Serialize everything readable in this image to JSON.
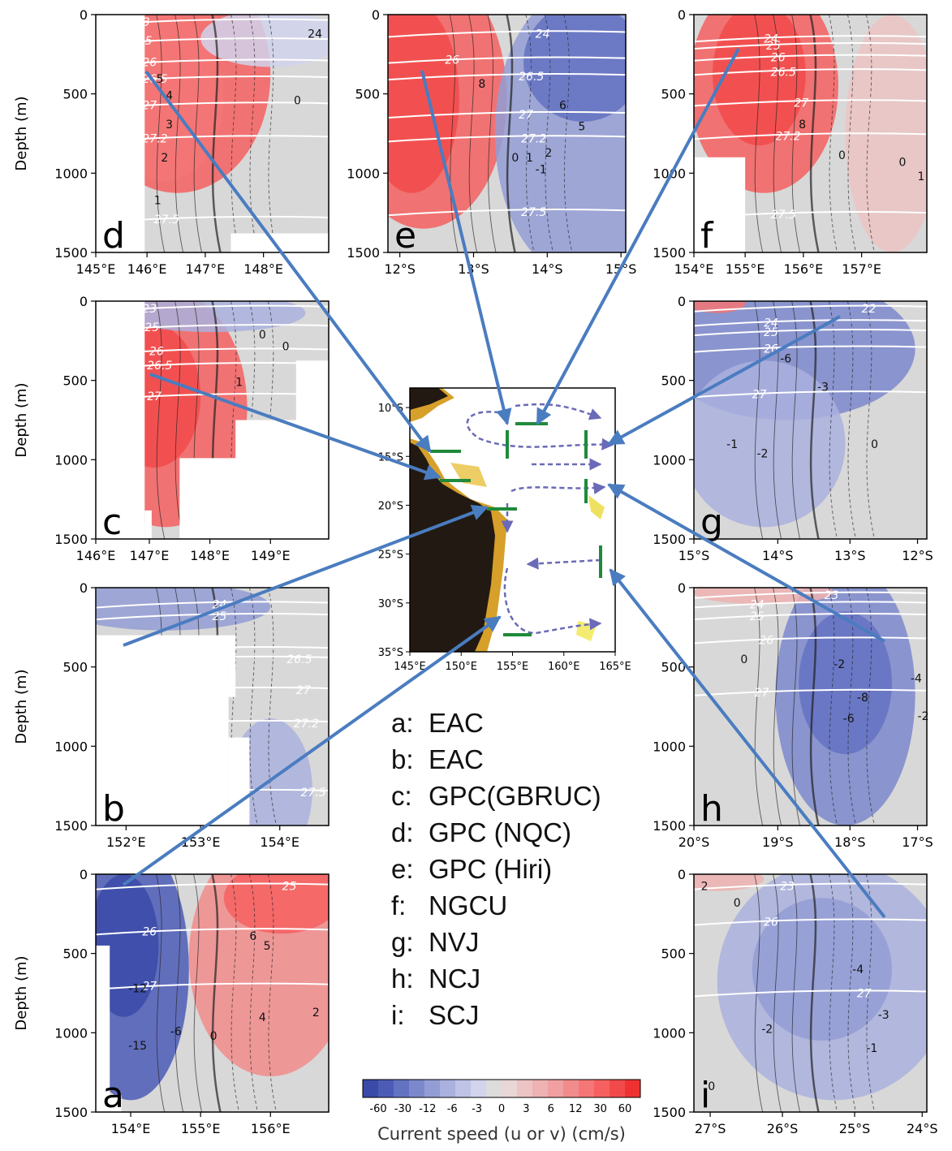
{
  "chart_data": {
    "type": "contour",
    "y_axis_label": "Depth (m)",
    "y_ticks": [
      "0",
      "500",
      "1000",
      "1500"
    ],
    "ylim": [
      0,
      1500
    ],
    "panels": [
      {
        "id": "d",
        "letter": "d",
        "x_ticks": [
          "145°E",
          "146°E",
          "147°E",
          "148°E"
        ],
        "density_labels": [
          "23",
          "25",
          "26",
          "26.5",
          "27",
          "27.2",
          "27.5"
        ],
        "speed_labels": [
          "5",
          "4",
          "3",
          "2",
          "1",
          "0",
          "24"
        ]
      },
      {
        "id": "e",
        "letter": "e",
        "x_ticks": [
          "12°S",
          "13°S",
          "14°S",
          "15°S"
        ],
        "density_labels": [
          "24",
          "26",
          "26.5",
          "27",
          "27.2",
          "27.5"
        ],
        "speed_labels": [
          "8",
          "6",
          "5",
          "2",
          "1",
          "0",
          "-1"
        ]
      },
      {
        "id": "f",
        "letter": "f",
        "x_ticks": [
          "154°E",
          "155°E",
          "156°E",
          "157°E"
        ],
        "density_labels": [
          "24",
          "25",
          "26",
          "26.5",
          "27",
          "27.2",
          "27.5"
        ],
        "speed_labels": [
          "8",
          "0",
          "0",
          "1"
        ]
      },
      {
        "id": "c",
        "letter": "c",
        "x_ticks": [
          "146°E",
          "147°E",
          "148°E",
          "149°E"
        ],
        "density_labels": [
          "23",
          "25",
          "26",
          "26.5",
          "27"
        ],
        "speed_labels": [
          "0",
          "0",
          "1"
        ]
      },
      {
        "id": "g",
        "letter": "g",
        "x_ticks": [
          "15°S",
          "14°S",
          "13°S",
          "12°S"
        ],
        "density_labels": [
          "22",
          "24",
          "25",
          "26",
          "27"
        ],
        "speed_labels": [
          "-6",
          "-3",
          "-2",
          "-1",
          "0"
        ]
      },
      {
        "id": "b",
        "letter": "b",
        "x_ticks": [
          "152°E",
          "153°E",
          "154°E"
        ],
        "density_labels": [
          "24",
          "25",
          "26",
          "26.5",
          "27",
          "27.2",
          "27.5"
        ],
        "speed_labels": []
      },
      {
        "id": "h",
        "letter": "h",
        "x_ticks": [
          "20°S",
          "19°S",
          "18°S",
          "17°S"
        ],
        "density_labels": [
          "23",
          "24",
          "25",
          "26",
          "27"
        ],
        "speed_labels": [
          "0",
          "-2",
          "-4",
          "-8",
          "-6",
          "-2"
        ]
      },
      {
        "id": "a",
        "letter": "a",
        "x_ticks": [
          "154°E",
          "155°E",
          "156°E"
        ],
        "density_labels": [
          "25",
          "26",
          "27"
        ],
        "speed_labels": [
          "-15",
          "-12",
          "-6",
          "0",
          "6",
          "5",
          "4",
          "2"
        ]
      },
      {
        "id": "i",
        "letter": "i",
        "x_ticks": [
          "27°S",
          "26°S",
          "25°S",
          "24°S"
        ],
        "density_labels": [
          "23",
          "26",
          "27"
        ],
        "speed_labels": [
          "2",
          "0",
          "-4",
          "-3",
          "-2",
          "-1",
          "0"
        ]
      }
    ],
    "map": {
      "x_ticks": [
        "145°E",
        "150°E",
        "155°E",
        "160°E",
        "165°E"
      ],
      "y_ticks": [
        "10°S",
        "15°S",
        "20°S",
        "25°S",
        "30°S",
        "35°S"
      ],
      "xlim": [
        145,
        165
      ],
      "ylim": [
        -35,
        -8
      ]
    },
    "colorbar": {
      "label": "Current speed (u or v) (cm/s)",
      "tick_labels": [
        "-60",
        "-30",
        "-12",
        "-6",
        "-3",
        "0",
        "3",
        "6",
        "12",
        "30",
        "60"
      ],
      "colors": [
        "#3a4aa8",
        "#4c5cb6",
        "#6472c2",
        "#7c88cc",
        "#939dd5",
        "#aab1de",
        "#bfc4e6",
        "#d1d4ec",
        "#dcdcdc",
        "#e9d6d6",
        "#ecc4c4",
        "#eeb2b2",
        "#f0a0a0",
        "#f28c8c",
        "#f47676",
        "#f66060",
        "#f24a4a",
        "#ee3232"
      ]
    },
    "legend": [
      {
        "code": "a:",
        "name": "EAC"
      },
      {
        "code": "b:",
        "name": "EAC"
      },
      {
        "code": "c:",
        "name": "GPC(GBRUC)"
      },
      {
        "code": "d:",
        "name": "GPC (NQC)"
      },
      {
        "code": "e:",
        "name": "GPC (Hiri)"
      },
      {
        "code": "f:",
        "name": "NGCU"
      },
      {
        "code": "g:",
        "name": "NVJ"
      },
      {
        "code": "h:",
        "name": "NCJ"
      },
      {
        "code": "i:",
        "name": "SCJ"
      }
    ],
    "colors": {
      "positive": "#ee4a4a",
      "negative": "#4c5cb6",
      "neutral": "#d8d8d8",
      "arrow": "#4a7cc0",
      "section": "#1f8a3a",
      "land": "#221a12",
      "shelf": "#d6a02a"
    }
  }
}
